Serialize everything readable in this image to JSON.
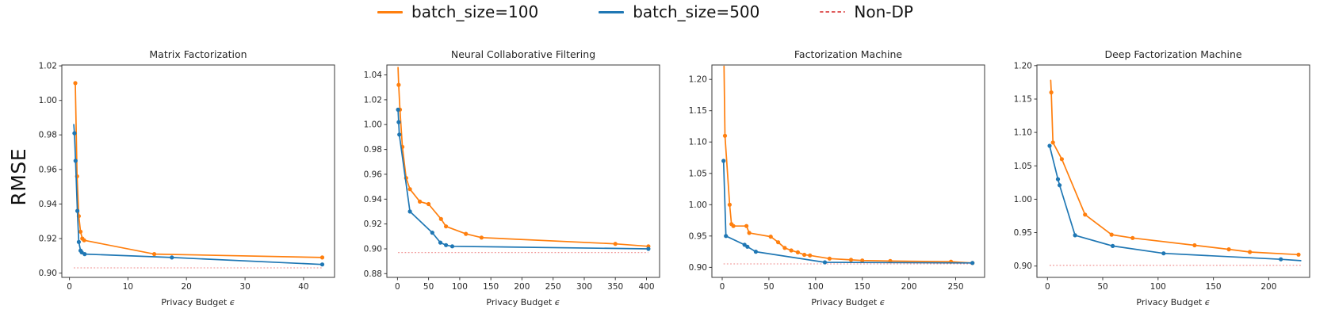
{
  "figure": {
    "ylabel": "RMSE",
    "xlabel": "Privacy Budget ϵ"
  },
  "legend": {
    "items": [
      {
        "label": "batch_size=100",
        "color": "#ff7f0e",
        "style": "solid"
      },
      {
        "label": "batch_size=500",
        "color": "#1f77b4",
        "style": "solid"
      },
      {
        "label": "Non-DP",
        "color": "#e05c5c",
        "style": "dashed"
      }
    ]
  },
  "chart_data": [
    {
      "type": "line",
      "title": "Matrix Factorization",
      "xlabel": "Privacy Budget ϵ",
      "ylabel": "RMSE",
      "xlim": [
        -1.3,
        45.3
      ],
      "ylim": [
        0.8975,
        1.0205
      ],
      "xticks": [
        0,
        10,
        20,
        30,
        40
      ],
      "yticks": [
        0.9,
        0.92,
        0.94,
        0.96,
        0.98,
        1.0,
        1.02
      ],
      "grid": false,
      "legend_position": "figure-top",
      "nondp": {
        "label": "Non-DP",
        "value": 0.903,
        "color": "#ef8a8a"
      },
      "series": [
        {
          "name": "batch_size=100",
          "color": "#ff7f0e",
          "x": [
            1.0,
            1.3,
            1.6,
            1.9,
            2.2,
            2.5,
            14.5,
            43.2
          ],
          "y": [
            1.01,
            0.956,
            0.933,
            0.924,
            0.92,
            0.919,
            0.911,
            0.909
          ]
        },
        {
          "name": "batch_size=500",
          "color": "#1f77b4",
          "first_point_no_marker": true,
          "x": [
            0.75,
            0.85,
            1.05,
            1.35,
            1.6,
            1.9,
            2.1,
            2.6,
            17.5,
            43.2
          ],
          "y": [
            0.986,
            0.981,
            0.965,
            0.936,
            0.918,
            0.913,
            0.912,
            0.911,
            0.909,
            0.905
          ]
        }
      ]
    },
    {
      "type": "line",
      "title": "Neural Collaborative Filtering",
      "xlabel": "Privacy Budget ϵ",
      "ylabel": "RMSE",
      "xlim": [
        -17,
        421
      ],
      "ylim": [
        0.877,
        1.048
      ],
      "xticks": [
        0,
        50,
        100,
        150,
        200,
        250,
        300,
        350,
        400
      ],
      "yticks": [
        0.88,
        0.9,
        0.92,
        0.94,
        0.96,
        0.98,
        1.0,
        1.02,
        1.04
      ],
      "grid": false,
      "legend_position": "figure-top",
      "nondp": {
        "label": "Non-DP",
        "value": 0.897,
        "color": "#ef8a8a"
      },
      "series": [
        {
          "name": "batch_size=100",
          "color": "#ff7f0e",
          "first_point_no_marker": true,
          "x": [
            1,
            2,
            4,
            8,
            14,
            20,
            36,
            50,
            70,
            78,
            110,
            135,
            350,
            403
          ],
          "y": [
            1.046,
            1.032,
            1.012,
            0.982,
            0.957,
            0.948,
            0.938,
            0.936,
            0.924,
            0.918,
            0.912,
            0.909,
            0.904,
            0.902
          ]
        },
        {
          "name": "batch_size=500",
          "color": "#1f77b4",
          "x": [
            1,
            2,
            3,
            20,
            56,
            69,
            78,
            88,
            403
          ],
          "y": [
            1.012,
            1.002,
            0.992,
            0.93,
            0.913,
            0.905,
            0.903,
            0.902,
            0.9
          ]
        }
      ]
    },
    {
      "type": "line",
      "title": "Factorization Machine",
      "xlabel": "Privacy Budget ϵ",
      "ylabel": "RMSE",
      "xlim": [
        -11,
        281
      ],
      "ylim": [
        0.884,
        1.223
      ],
      "xticks": [
        0,
        50,
        100,
        150,
        200,
        250
      ],
      "yticks": [
        0.9,
        0.95,
        1.0,
        1.05,
        1.1,
        1.15,
        1.2
      ],
      "grid": false,
      "legend_position": "figure-top",
      "nondp": {
        "label": "Non-DP",
        "value": 0.9055,
        "color": "#ef8a8a"
      },
      "series": [
        {
          "name": "batch_size=100",
          "color": "#ff7f0e",
          "first_point_no_marker": true,
          "x": [
            2,
            3,
            8,
            10,
            12,
            26,
            29,
            52,
            60,
            67,
            74,
            81,
            88,
            94,
            115,
            138,
            150,
            180,
            245,
            268
          ],
          "y": [
            1.221,
            1.11,
            1.0,
            0.969,
            0.966,
            0.966,
            0.955,
            0.949,
            0.94,
            0.931,
            0.927,
            0.924,
            0.92,
            0.919,
            0.914,
            0.912,
            0.911,
            0.91,
            0.909,
            0.907
          ]
        },
        {
          "name": "batch_size=500",
          "color": "#1f77b4",
          "x": [
            1.5,
            4,
            24,
            27,
            36,
            110,
            268
          ],
          "y": [
            1.07,
            0.95,
            0.936,
            0.933,
            0.925,
            0.908,
            0.907
          ]
        }
      ]
    },
    {
      "type": "line",
      "title": "Deep Factorization Machine",
      "xlabel": "Privacy Budget ϵ",
      "ylabel": "RMSE",
      "xlim": [
        -9.5,
        237
      ],
      "ylim": [
        0.883,
        1.201
      ],
      "xticks": [
        0,
        50,
        100,
        150,
        200
      ],
      "yticks": [
        0.9,
        0.95,
        1.0,
        1.05,
        1.1,
        1.15,
        1.2
      ],
      "grid": false,
      "legend_position": "figure-top",
      "nondp": {
        "label": "Non-DP",
        "value": 0.901,
        "color": "#ef8a8a"
      },
      "series": [
        {
          "name": "batch_size=100",
          "color": "#ff7f0e",
          "first_point_no_marker": true,
          "x": [
            3,
            3.5,
            5,
            13,
            34,
            58,
            77,
            133,
            164,
            183,
            227
          ],
          "y": [
            1.178,
            1.16,
            1.085,
            1.06,
            0.977,
            0.947,
            0.942,
            0.931,
            0.925,
            0.921,
            0.917
          ]
        },
        {
          "name": "batch_size=500",
          "color": "#1f77b4",
          "last_point_no_marker": true,
          "x": [
            2,
            9.5,
            11,
            25,
            59,
            105,
            211,
            229
          ],
          "y": [
            1.08,
            1.03,
            1.021,
            0.946,
            0.93,
            0.919,
            0.91,
            0.908
          ]
        }
      ]
    }
  ]
}
